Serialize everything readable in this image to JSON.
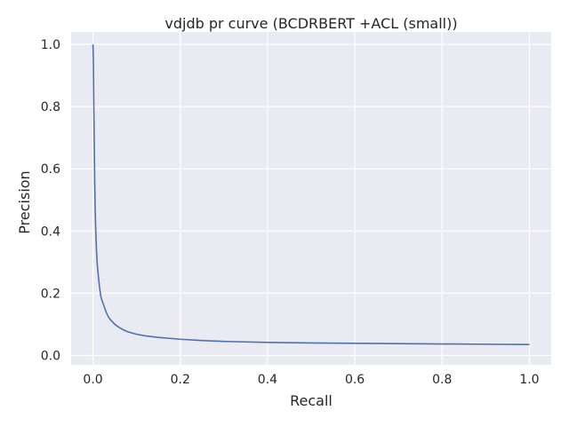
{
  "chart_data": {
    "type": "line",
    "title": "vdjdb pr curve (BCDRBERT +ACL (small))",
    "xlabel": "Recall",
    "ylabel": "Precision",
    "xlim": [
      -0.05,
      1.05
    ],
    "ylim": [
      -0.03,
      1.04
    ],
    "xticks": [
      "0.0",
      "0.2",
      "0.4",
      "0.6",
      "0.8",
      "1.0"
    ],
    "yticks": [
      "0.0",
      "0.2",
      "0.4",
      "0.6",
      "0.8",
      "1.0"
    ],
    "grid": true,
    "colors": {
      "background": "#eaeaf2",
      "grid": "#ffffff",
      "line": "#4c72b0"
    },
    "series": [
      {
        "x": [
          0.0,
          0.001,
          0.002,
          0.003,
          0.004,
          0.005,
          0.006,
          0.008,
          0.01,
          0.012,
          0.015,
          0.018,
          0.02,
          0.025,
          0.03,
          0.035,
          0.04,
          0.05,
          0.06,
          0.07,
          0.08,
          0.1,
          0.12,
          0.15,
          0.2,
          0.25,
          0.3,
          0.4,
          0.5,
          0.6,
          0.7,
          0.8,
          0.9,
          1.0
        ],
        "y": [
          1.0,
          0.95,
          0.8,
          0.68,
          0.56,
          0.48,
          0.42,
          0.34,
          0.29,
          0.26,
          0.22,
          0.19,
          0.18,
          0.16,
          0.14,
          0.125,
          0.115,
          0.1,
          0.09,
          0.082,
          0.076,
          0.068,
          0.063,
          0.058,
          0.052,
          0.048,
          0.045,
          0.042,
          0.04,
          0.039,
          0.038,
          0.037,
          0.036,
          0.035
        ]
      }
    ]
  }
}
